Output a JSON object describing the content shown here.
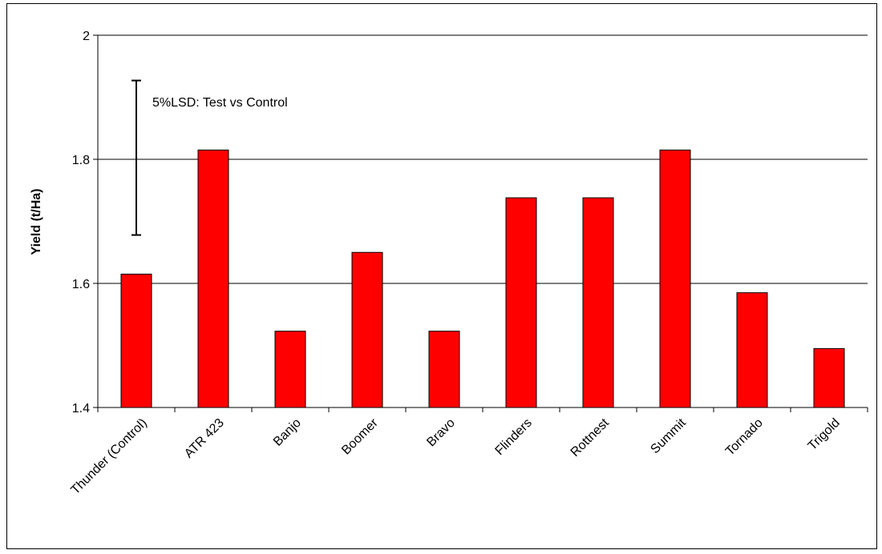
{
  "chart_data": {
    "type": "bar",
    "categories": [
      "Thunder (Control)",
      "ATR 423",
      "Banjo",
      "Boomer",
      "Bravo",
      "Flinders",
      "Rottnest",
      "Summit",
      "Tornado",
      "Trigold"
    ],
    "values": [
      1.615,
      1.815,
      1.523,
      1.65,
      1.523,
      1.738,
      1.738,
      1.815,
      1.585,
      1.495
    ],
    "xlabel": "",
    "ylabel": "Yield (t/Ha)",
    "ylim": [
      1.4,
      2.0
    ],
    "yticks": [
      1.4,
      1.6,
      1.8,
      2.0
    ],
    "ytick_labels": [
      "1.4",
      "1.6",
      "1.8",
      "2"
    ],
    "grid": "horizontal",
    "bar_color": "#ff0000",
    "bar_edge_color": "#000000",
    "lsd": {
      "label": "5%LSD: Test vs Control",
      "low": 1.678,
      "high": 1.927
    }
  }
}
